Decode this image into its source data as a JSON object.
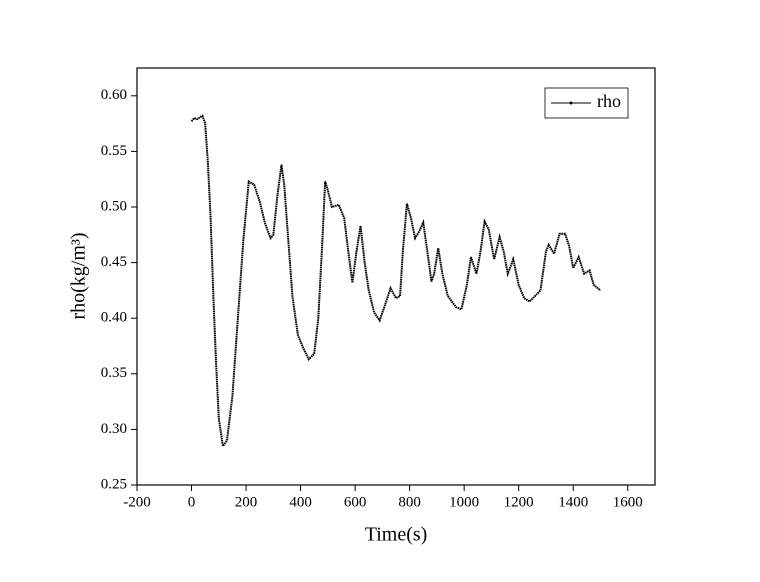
{
  "chart_data": {
    "type": "line",
    "x_label": "Time(s)",
    "y_label": "rho(kg/m³)",
    "x": [
      0,
      10,
      20,
      40,
      50,
      60,
      70,
      80,
      90,
      100,
      115,
      130,
      150,
      170,
      190,
      210,
      230,
      250,
      270,
      290,
      300,
      315,
      330,
      340,
      355,
      370,
      390,
      410,
      430,
      450,
      465,
      480,
      490,
      500,
      515,
      540,
      560,
      575,
      590,
      605,
      620,
      635,
      650,
      670,
      690,
      710,
      730,
      750,
      765,
      775,
      790,
      805,
      820,
      835,
      850,
      865,
      880,
      890,
      905,
      920,
      940,
      970,
      990,
      1010,
      1025,
      1045,
      1060,
      1075,
      1090,
      1110,
      1130,
      1145,
      1160,
      1180,
      1200,
      1220,
      1240,
      1260,
      1280,
      1300,
      1310,
      1330,
      1350,
      1370,
      1385,
      1400,
      1420,
      1440,
      1460,
      1475,
      1500
    ],
    "series": [
      {
        "name": "rho",
        "color": "#000000",
        "values": [
          0.577,
          0.58,
          0.579,
          0.582,
          0.575,
          0.54,
          0.49,
          0.42,
          0.36,
          0.31,
          0.285,
          0.29,
          0.33,
          0.4,
          0.47,
          0.523,
          0.52,
          0.505,
          0.485,
          0.472,
          0.475,
          0.51,
          0.538,
          0.52,
          0.47,
          0.42,
          0.385,
          0.373,
          0.363,
          0.368,
          0.4,
          0.47,
          0.523,
          0.515,
          0.5,
          0.502,
          0.49,
          0.46,
          0.432,
          0.46,
          0.483,
          0.45,
          0.425,
          0.405,
          0.398,
          0.412,
          0.427,
          0.418,
          0.42,
          0.46,
          0.503,
          0.49,
          0.472,
          0.478,
          0.486,
          0.46,
          0.433,
          0.44,
          0.463,
          0.44,
          0.42,
          0.41,
          0.408,
          0.43,
          0.455,
          0.44,
          0.46,
          0.487,
          0.48,
          0.453,
          0.473,
          0.46,
          0.44,
          0.453,
          0.43,
          0.418,
          0.415,
          0.42,
          0.425,
          0.46,
          0.466,
          0.458,
          0.476,
          0.476,
          0.465,
          0.445,
          0.455,
          0.44,
          0.443,
          0.43,
          0.425
        ]
      }
    ],
    "xlim": [
      -200,
      1700
    ],
    "xticks": [
      -200,
      0,
      200,
      400,
      600,
      800,
      1000,
      1200,
      1400,
      1600
    ],
    "ylim": [
      0.25,
      0.625
    ],
    "yticks": [
      0.25,
      {
        "value": 0.3,
        "label": "0.30"
      },
      0.35,
      {
        "value": 0.4,
        "label": "0.40"
      },
      0.45,
      {
        "value": 0.5,
        "label": "0.50"
      },
      0.55,
      {
        "value": 0.6,
        "label": "0.60"
      }
    ],
    "legend": "top-right",
    "grid": false
  }
}
